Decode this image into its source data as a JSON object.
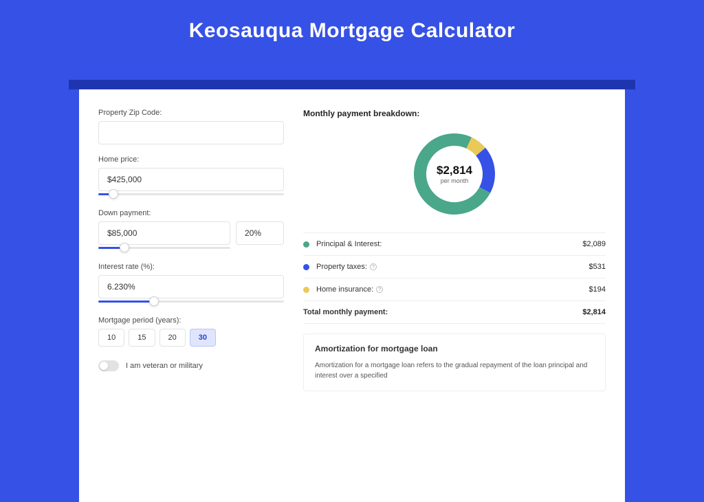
{
  "page": {
    "title": "Keosauqua Mortgage Calculator",
    "background_color": "#3651e6",
    "shadow_color": "#1f35b0",
    "card_color": "#ffffff"
  },
  "form": {
    "zip": {
      "label": "Property Zip Code:",
      "value": ""
    },
    "home_price": {
      "label": "Home price:",
      "value": "$425,000",
      "slider_pct": 8
    },
    "down_payment": {
      "label": "Down payment:",
      "value": "$85,000",
      "pct_value": "20%",
      "slider_pct": 20
    },
    "interest_rate": {
      "label": "Interest rate (%):",
      "value": "6.230%",
      "slider_pct": 30
    },
    "mortgage_period": {
      "label": "Mortgage period (years):",
      "options": [
        "10",
        "15",
        "20",
        "30"
      ],
      "selected": "30"
    },
    "veteran": {
      "label": "I am veteran or military",
      "enabled": false
    }
  },
  "breakdown": {
    "title": "Monthly payment breakdown:",
    "amount_display": "$2,814",
    "amount_sub": "per month",
    "items": [
      {
        "label": "Principal & Interest:",
        "value_display": "$2,089",
        "value": 2089,
        "color": "#4aa789",
        "help": false
      },
      {
        "label": "Property taxes:",
        "value_display": "$531",
        "value": 531,
        "color": "#3651e6",
        "help": true
      },
      {
        "label": "Home insurance:",
        "value_display": "$194",
        "value": 194,
        "color": "#e9c958",
        "help": true
      }
    ],
    "total_label": "Total monthly payment:",
    "total_display": "$2,814",
    "total_value": 2814,
    "donut": {
      "radius": 50,
      "stroke": 18
    }
  },
  "amortization": {
    "title": "Amortization for mortgage loan",
    "text": "Amortization for a mortgage loan refers to the gradual repayment of the loan principal and interest over a specified"
  }
}
